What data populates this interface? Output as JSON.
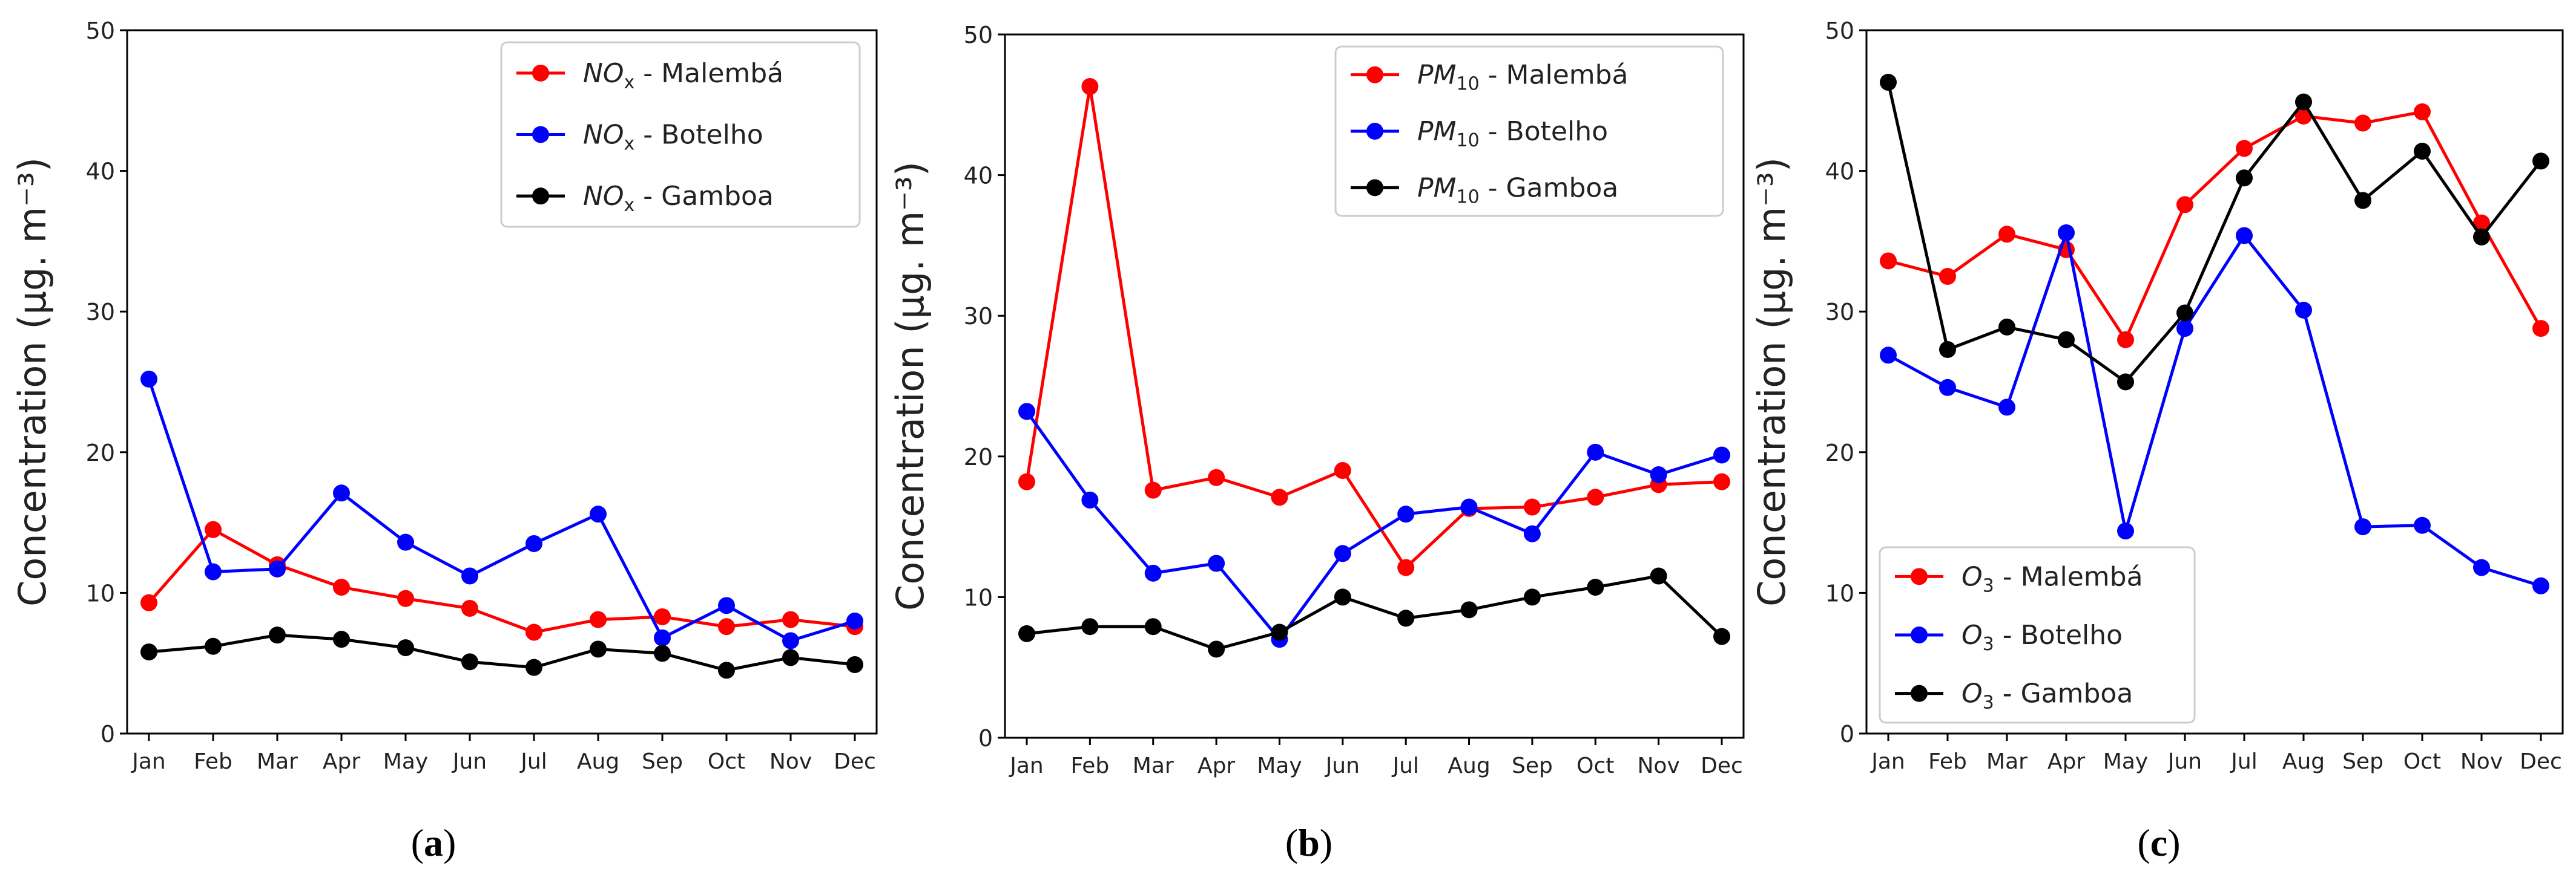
{
  "chart_data": [
    {
      "type": "line",
      "panel_label": "a",
      "xlabel": "",
      "ylabel": "Concentration (μg. m⁻³)",
      "ylim": [
        0,
        50
      ],
      "yticks": [
        0,
        10,
        20,
        30,
        40,
        50
      ],
      "categories": [
        "Jan",
        "Feb",
        "Mar",
        "Apr",
        "May",
        "Jun",
        "Jul",
        "Aug",
        "Sep",
        "Oct",
        "Nov",
        "Dec"
      ],
      "legend_position": "top-right",
      "series": [
        {
          "name": "NOx - Malembá",
          "label_main": "NO",
          "label_sub": "x",
          "label_rest": " - Malembá",
          "color": "#ff0000",
          "values": [
            9.3,
            14.5,
            12.0,
            10.4,
            9.6,
            8.9,
            7.2,
            8.1,
            8.3,
            7.6,
            8.1,
            7.6
          ]
        },
        {
          "name": "NOx - Botelho",
          "label_main": "NO",
          "label_sub": "x",
          "label_rest": " - Botelho",
          "color": "#0000ff",
          "values": [
            25.2,
            11.5,
            11.7,
            17.1,
            13.6,
            11.2,
            13.5,
            15.6,
            6.8,
            9.1,
            6.6,
            8.0
          ]
        },
        {
          "name": "NOx - Gamboa",
          "label_main": "NO",
          "label_sub": "x",
          "label_rest": " - Gamboa",
          "color": "#000000",
          "values": [
            5.8,
            6.2,
            7.0,
            6.7,
            6.1,
            5.1,
            4.7,
            6.0,
            5.7,
            4.5,
            5.4,
            4.9
          ]
        }
      ]
    },
    {
      "type": "line",
      "panel_label": "b",
      "xlabel": "",
      "ylabel": "Concentration (μg. m⁻³)",
      "ylim": [
        0,
        50
      ],
      "yticks": [
        0,
        10,
        20,
        30,
        40,
        50
      ],
      "categories": [
        "Jan",
        "Feb",
        "Mar",
        "Apr",
        "May",
        "Jun",
        "Jul",
        "Aug",
        "Sep",
        "Oct",
        "Nov",
        "Dec"
      ],
      "legend_position": "top-right",
      "series": [
        {
          "name": "PM10 - Malembá",
          "label_main": "PM",
          "label_sub": "10",
          "label_rest": "  - Malembá",
          "color": "#ff0000",
          "values": [
            18.2,
            46.3,
            17.6,
            18.5,
            17.1,
            19.0,
            12.1,
            16.3,
            16.4,
            17.1,
            18.0,
            18.2
          ]
        },
        {
          "name": "PM10 - Botelho",
          "label_main": "PM",
          "label_sub": "10",
          "label_rest": "  - Botelho",
          "color": "#0000ff",
          "values": [
            23.2,
            16.9,
            11.7,
            12.4,
            7.0,
            13.1,
            15.9,
            16.4,
            14.5,
            20.3,
            18.7,
            20.1
          ]
        },
        {
          "name": "PM10 - Gamboa",
          "label_main": "PM",
          "label_sub": "10",
          "label_rest": "  - Gamboa",
          "color": "#000000",
          "values": [
            7.4,
            7.9,
            7.9,
            6.3,
            7.5,
            10.0,
            8.5,
            9.1,
            10.0,
            10.7,
            11.5,
            7.2
          ]
        }
      ]
    },
    {
      "type": "line",
      "panel_label": "c",
      "xlabel": "",
      "ylabel": "Concentration (μg. m⁻³)",
      "ylim": [
        0,
        50
      ],
      "yticks": [
        0,
        10,
        20,
        30,
        40,
        50
      ],
      "categories": [
        "Jan",
        "Feb",
        "Mar",
        "Apr",
        "May",
        "Jun",
        "Jul",
        "Aug",
        "Sep",
        "Oct",
        "Nov",
        "Dec"
      ],
      "legend_position": "bottom-left",
      "series": [
        {
          "name": "O3 - Malembá",
          "label_main": "O",
          "label_sub": "3",
          "label_rest": " - Malembá",
          "color": "#ff0000",
          "values": [
            33.6,
            32.5,
            35.5,
            34.4,
            28.0,
            37.6,
            41.6,
            43.9,
            43.4,
            44.2,
            36.3,
            28.8
          ]
        },
        {
          "name": "O3 - Botelho",
          "label_main": "O",
          "label_sub": "3",
          "label_rest": " - Botelho",
          "color": "#0000ff",
          "values": [
            26.9,
            24.6,
            23.2,
            35.6,
            14.4,
            28.8,
            35.4,
            30.1,
            14.7,
            14.8,
            11.8,
            10.5
          ]
        },
        {
          "name": "O3 - Gamboa",
          "label_main": "O",
          "label_sub": "3",
          "label_rest": " - Gamboa",
          "color": "#000000",
          "values": [
            46.3,
            27.3,
            28.9,
            28.0,
            25.0,
            29.9,
            39.5,
            44.9,
            37.9,
            41.4,
            35.3,
            40.7
          ]
        }
      ]
    }
  ]
}
